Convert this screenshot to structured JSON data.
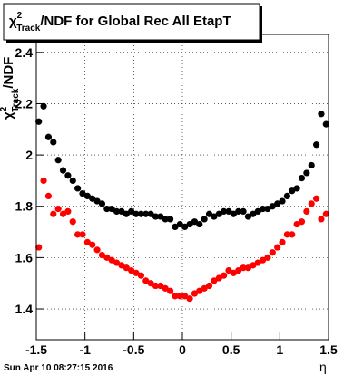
{
  "chart_data": {
    "type": "scatter",
    "title": {
      "symbol": "χ",
      "sup": "2",
      "sub": "Track",
      "rest": "/NDF for Global Rec All EtapT"
    },
    "ylabel": {
      "symbol": "χ",
      "sup": "2",
      "sub": "Track",
      "rest": "/NDF"
    },
    "xlabel": "η",
    "footer": "Sun Apr 10 08:27:15 2016",
    "xlim": [
      -1.5,
      1.5
    ],
    "ylim": [
      1.28,
      2.47
    ],
    "xticks": [
      -1.5,
      -1,
      -0.5,
      0,
      0.5,
      1,
      1.5
    ],
    "yticks": [
      1.4,
      1.6,
      1.8,
      2,
      2.2,
      2.4
    ],
    "grid": true,
    "x": [
      -1.475,
      -1.425,
      -1.375,
      -1.325,
      -1.275,
      -1.225,
      -1.175,
      -1.125,
      -1.075,
      -1.025,
      -0.975,
      -0.925,
      -0.875,
      -0.825,
      -0.775,
      -0.725,
      -0.675,
      -0.625,
      -0.575,
      -0.525,
      -0.475,
      -0.425,
      -0.375,
      -0.325,
      -0.275,
      -0.225,
      -0.175,
      -0.125,
      -0.075,
      -0.025,
      0.025,
      0.075,
      0.125,
      0.175,
      0.225,
      0.275,
      0.325,
      0.375,
      0.425,
      0.475,
      0.525,
      0.575,
      0.625,
      0.675,
      0.725,
      0.775,
      0.825,
      0.875,
      0.925,
      0.975,
      1.025,
      1.075,
      1.125,
      1.175,
      1.225,
      1.275,
      1.325,
      1.375,
      1.425,
      1.475
    ],
    "series": [
      {
        "color": "#000000",
        "values": [
          2.13,
          2.19,
          2.07,
          2.05,
          1.98,
          1.94,
          1.92,
          1.9,
          1.87,
          1.85,
          1.84,
          1.83,
          1.82,
          1.81,
          1.79,
          1.79,
          1.78,
          1.78,
          1.77,
          1.78,
          1.77,
          1.77,
          1.77,
          1.77,
          1.76,
          1.76,
          1.75,
          1.75,
          1.72,
          1.73,
          1.72,
          1.73,
          1.74,
          1.73,
          1.75,
          1.77,
          1.76,
          1.77,
          1.78,
          1.78,
          1.77,
          1.78,
          1.78,
          1.76,
          1.77,
          1.78,
          1.79,
          1.79,
          1.8,
          1.81,
          1.82,
          1.84,
          1.86,
          1.87,
          1.91,
          1.93,
          1.96,
          2.04,
          2.16,
          2.12
        ]
      },
      {
        "color": "#ff0000",
        "values": [
          1.64,
          1.9,
          1.84,
          1.77,
          1.79,
          1.77,
          1.78,
          1.74,
          1.69,
          1.69,
          1.66,
          1.65,
          1.63,
          1.61,
          1.6,
          1.59,
          1.58,
          1.57,
          1.56,
          1.55,
          1.54,
          1.53,
          1.51,
          1.5,
          1.49,
          1.49,
          1.48,
          1.47,
          1.45,
          1.45,
          1.45,
          1.44,
          1.46,
          1.47,
          1.48,
          1.49,
          1.51,
          1.52,
          1.53,
          1.55,
          1.54,
          1.55,
          1.56,
          1.56,
          1.57,
          1.58,
          1.59,
          1.6,
          1.62,
          1.64,
          1.66,
          1.69,
          1.69,
          1.73,
          1.74,
          1.78,
          1.81,
          1.83,
          1.75,
          1.77
        ]
      }
    ]
  }
}
